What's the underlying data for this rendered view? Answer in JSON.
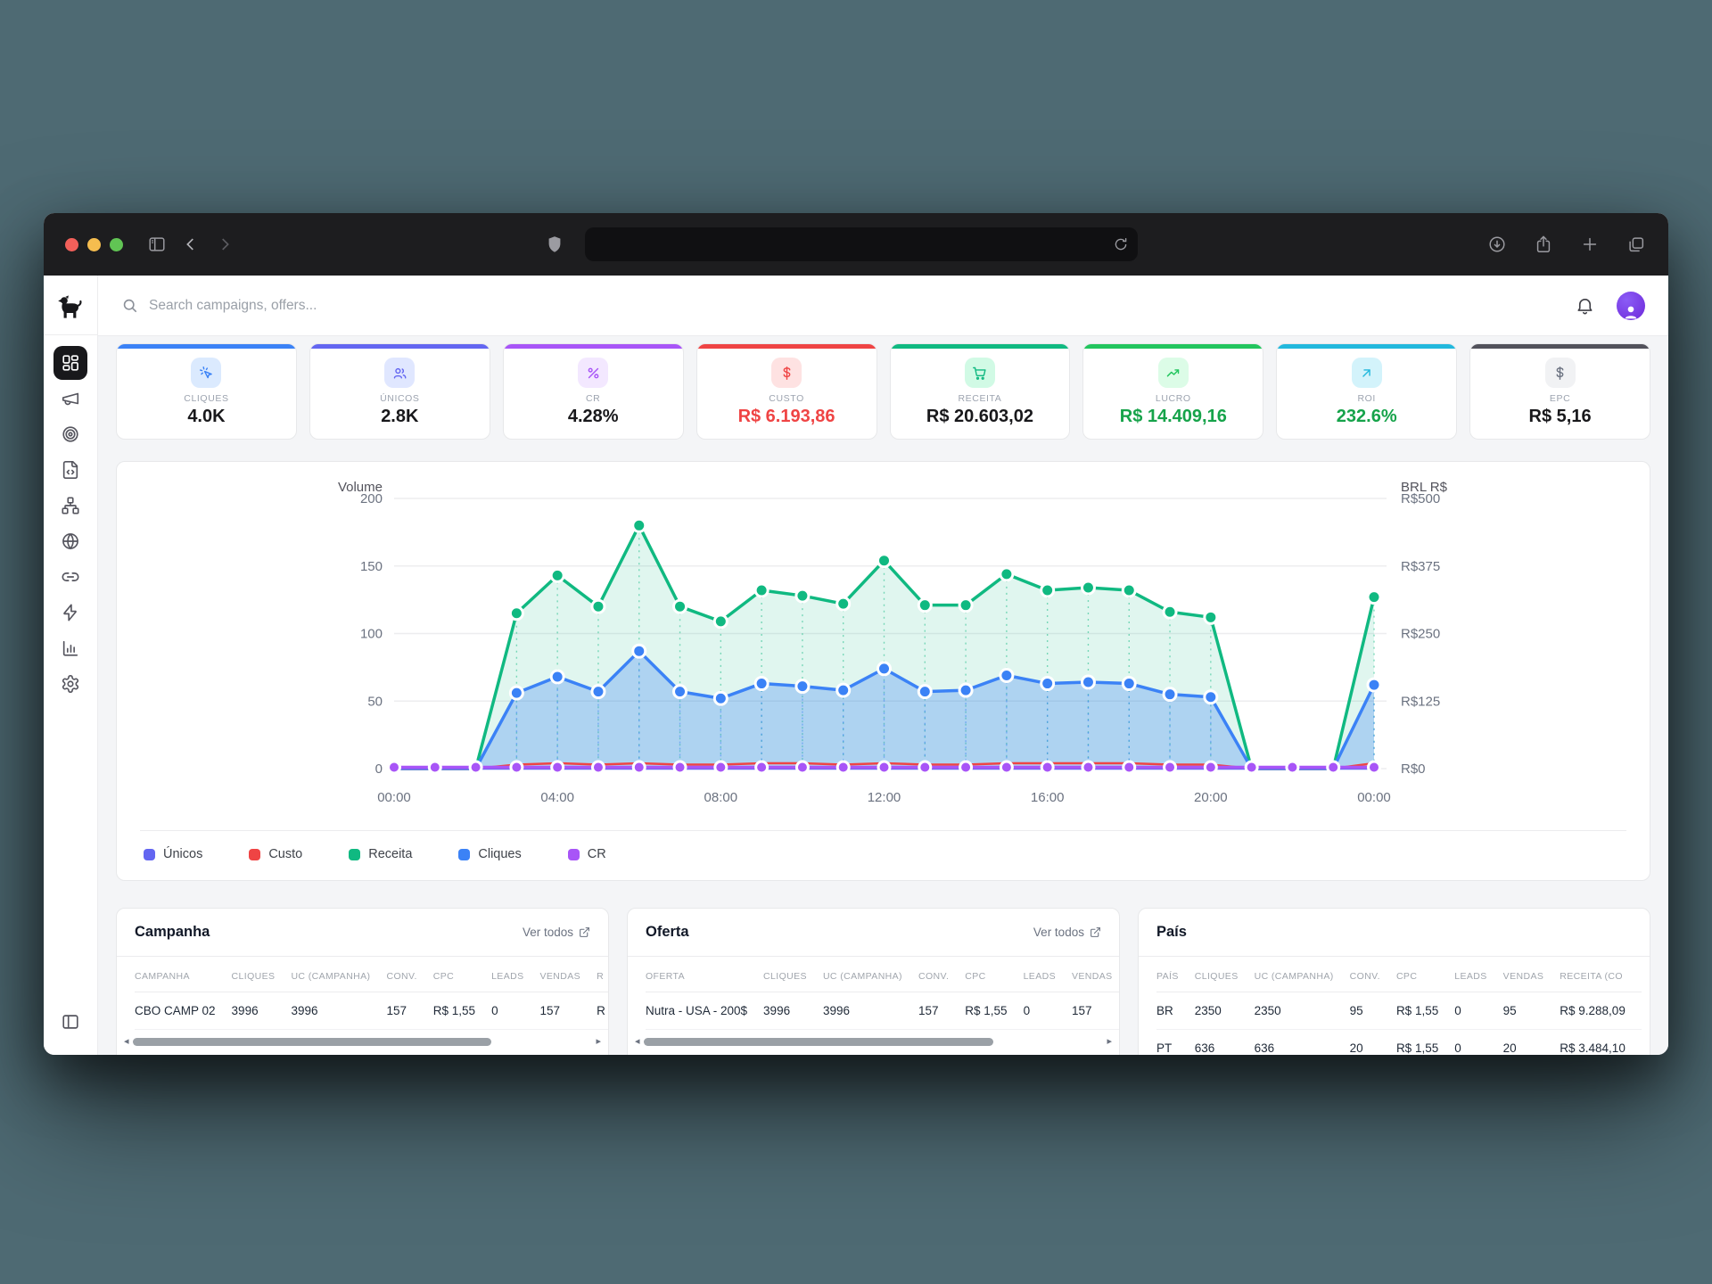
{
  "palette": {
    "page_bg": "#4e6a73",
    "titlebar_bg": "#1d1d1f",
    "traffic": [
      "#f2605a",
      "#f5bd4f",
      "#61c454"
    ]
  },
  "topbar": {
    "search_placeholder": "Search campaigns, offers..."
  },
  "stat_cards": [
    {
      "label": "CLIQUES",
      "value": "4.0K",
      "accent": "#3b82f6",
      "chip_bg": "#dbeafe",
      "icon_color": "#3b82f6",
      "value_color": "#18181b"
    },
    {
      "label": "ÚNICOS",
      "value": "2.8K",
      "accent": "#6366f1",
      "chip_bg": "#e0e7ff",
      "icon_color": "#6366f1",
      "value_color": "#18181b"
    },
    {
      "label": "CR",
      "value": "4.28%",
      "accent": "#a855f7",
      "chip_bg": "#f3e8ff",
      "icon_color": "#a855f7",
      "value_color": "#18181b"
    },
    {
      "label": "CUSTO",
      "value": "R$ 6.193,86",
      "accent": "#ef4444",
      "chip_bg": "#fee2e2",
      "icon_color": "#ef4444",
      "value_color": "#ef4444"
    },
    {
      "label": "RECEITA",
      "value": "R$ 20.603,02",
      "accent": "#10b981",
      "chip_bg": "#d1fae5",
      "icon_color": "#10b981",
      "value_color": "#18181b"
    },
    {
      "label": "LUCRO",
      "value": "R$ 14.409,16",
      "accent": "#22c55e",
      "chip_bg": "#dcfce7",
      "icon_color": "#22c55e",
      "value_color": "#16a34a"
    },
    {
      "label": "ROI",
      "value": "232.6%",
      "accent": "#22b8dd",
      "chip_bg": "#d3f3fb",
      "icon_color": "#22b8dd",
      "value_color": "#16a34a"
    },
    {
      "label": "EPC",
      "value": "R$ 5,16",
      "accent": "#52525b",
      "chip_bg": "#f1f2f4",
      "icon_color": "#6b7280",
      "value_color": "#18181b"
    }
  ],
  "chart_data": {
    "type": "area",
    "x_hours": [
      "00:00",
      "01:00",
      "02:00",
      "03:00",
      "04:00",
      "05:00",
      "06:00",
      "07:00",
      "08:00",
      "09:00",
      "10:00",
      "11:00",
      "12:00",
      "13:00",
      "14:00",
      "15:00",
      "16:00",
      "17:00",
      "18:00",
      "19:00",
      "20:00",
      "21:00",
      "22:00",
      "23:00",
      "00:00"
    ],
    "x_tick_indices": [
      0,
      4,
      8,
      12,
      16,
      20,
      24
    ],
    "x_tick_labels": [
      "00:00",
      "04:00",
      "08:00",
      "12:00",
      "16:00",
      "20:00",
      "00:00"
    ],
    "left_axis": {
      "title": "Volume",
      "max": 200,
      "ticks": [
        0,
        50,
        100,
        150,
        200
      ]
    },
    "right_axis": {
      "title": "BRL R$",
      "ticks": [
        "R$0",
        "R$125",
        "R$250",
        "R$375",
        "R$500"
      ]
    },
    "grid": true,
    "legend_position": "bottom",
    "series": [
      {
        "name": "Receita",
        "color": "#10b981",
        "fill": "rgba(16,185,129,0.13)",
        "dots": true,
        "values": [
          0,
          0,
          0,
          115,
          143,
          120,
          180,
          120,
          109,
          132,
          128,
          122,
          154,
          121,
          121,
          144,
          132,
          134,
          132,
          116,
          112,
          0,
          0,
          0,
          127
        ]
      },
      {
        "name": "Cliques",
        "color": "#3b82f6",
        "fill": "rgba(59,130,246,0.30)",
        "dots": true,
        "values": [
          0,
          0,
          0,
          56,
          68,
          57,
          87,
          57,
          52,
          63,
          61,
          58,
          74,
          57,
          58,
          69,
          63,
          64,
          63,
          55,
          53,
          0,
          0,
          0,
          62
        ]
      },
      {
        "name": "Custo",
        "color": "#ef4444",
        "dots": false,
        "values": [
          0,
          0,
          0,
          3,
          4,
          3,
          4,
          3,
          3,
          4,
          4,
          3,
          4,
          3,
          3,
          4,
          4,
          4,
          4,
          3,
          3,
          0,
          0,
          0,
          4
        ]
      },
      {
        "name": "Únicos",
        "color": "#6366f1",
        "dots": false,
        "values": [
          0,
          0,
          0,
          0,
          0,
          0,
          0,
          0,
          0,
          0,
          0,
          0,
          0,
          0,
          0,
          0,
          0,
          0,
          0,
          0,
          0,
          0,
          0,
          0,
          0
        ]
      },
      {
        "name": "CR",
        "color": "#a855f7",
        "dots": true,
        "values": [
          1,
          1,
          1,
          1,
          1,
          1,
          1,
          1,
          1,
          1,
          1,
          1,
          1,
          1,
          1,
          1,
          1,
          1,
          1,
          1,
          1,
          1,
          1,
          1,
          1
        ]
      }
    ],
    "legend": [
      {
        "label": "Únicos",
        "color": "#6366f1"
      },
      {
        "label": "Custo",
        "color": "#ef4444"
      },
      {
        "label": "Receita",
        "color": "#10b981"
      },
      {
        "label": "Cliques",
        "color": "#3b82f6"
      },
      {
        "label": "CR",
        "color": "#a855f7"
      }
    ]
  },
  "tables": {
    "campanha": {
      "title": "Campanha",
      "link": "Ver todos",
      "columns": [
        "CAMPANHA",
        "CLIQUES",
        "UC (CAMPANHA)",
        "CONV.",
        "CPC",
        "LEADS",
        "VENDAS",
        "R"
      ],
      "rows": [
        [
          "CBO CAMP 02",
          "3996",
          "3996",
          "157",
          "R$ 1,55",
          "0",
          "157",
          "R"
        ]
      ],
      "thumb_pct": 78
    },
    "oferta": {
      "title": "Oferta",
      "link": "Ver todos",
      "columns": [
        "OFERTA",
        "CLIQUES",
        "UC (CAMPANHA)",
        "CONV.",
        "CPC",
        "LEADS",
        "VENDAS"
      ],
      "rows": [
        [
          "Nutra - USA - 200$",
          "3996",
          "3996",
          "157",
          "R$ 1,55",
          "0",
          "157"
        ]
      ],
      "thumb_pct": 76
    },
    "pais": {
      "title": "País",
      "link": "",
      "columns": [
        "PAÍS",
        "CLIQUES",
        "UC (CAMPANHA)",
        "CONV.",
        "CPC",
        "LEADS",
        "VENDAS",
        "RECEITA (CO"
      ],
      "rows": [
        [
          "BR",
          "2350",
          "2350",
          "95",
          "R$ 1,55",
          "0",
          "95",
          "R$ 9.288,09"
        ],
        [
          "PT",
          "636",
          "636",
          "20",
          "R$ 1,55",
          "0",
          "20",
          "R$ 3.484,10"
        ]
      ],
      "thumb_pct": 0
    }
  }
}
